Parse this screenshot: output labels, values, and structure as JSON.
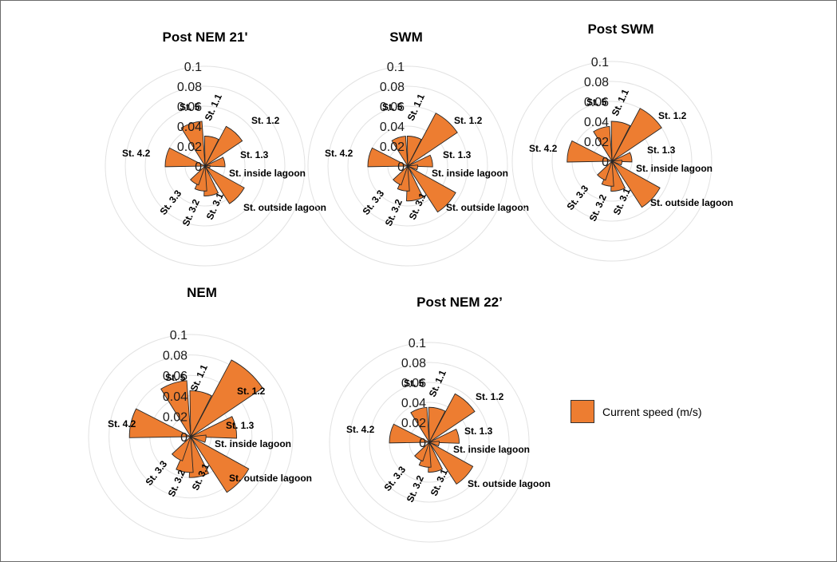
{
  "colors": {
    "bar_fill": "#ED7D31",
    "bar_stroke": "#262626",
    "grid": "#E2E2E2"
  },
  "legend": {
    "label": "Current speed (m/s)",
    "position": "right"
  },
  "chart_data": [
    {
      "type": "polar-bar",
      "title": "Post NEM 21'",
      "r_ticks": [
        "0",
        "0.02",
        "0.04",
        "0.06",
        "0.08",
        "0.1"
      ],
      "rlim": [
        0,
        0.1
      ],
      "grid": true,
      "categories": [
        "St. 1.1",
        "St. 1.2",
        "St. 1.3",
        "St. inside lagoon",
        "St. outside lagoon",
        "St. 3.1",
        "St. 3.2",
        "St. 3.3",
        "St. 4.2",
        "St. 5"
      ],
      "series": [
        {
          "name": "Current speed (m/s)",
          "values": [
            0.03,
            0.045,
            0.02,
            0.005,
            0.045,
            0.03,
            0.025,
            0.02,
            0.04,
            0.045
          ]
        }
      ]
    },
    {
      "type": "polar-bar",
      "title": "SWM",
      "r_ticks": [
        "0",
        "0.02",
        "0.04",
        "0.06",
        "0.08",
        "0.1"
      ],
      "rlim": [
        0,
        0.1
      ],
      "grid": true,
      "categories": [
        "St. 1.1",
        "St. 1.2",
        "St. 1.3",
        "St. inside lagoon",
        "St. outside lagoon",
        "St. 3.1",
        "St. 3.2",
        "St. 3.3",
        "St. 4.2",
        "St. 5"
      ],
      "series": [
        {
          "name": "Current speed (m/s)",
          "values": [
            0.03,
            0.06,
            0.025,
            0.01,
            0.055,
            0.035,
            0.025,
            0.02,
            0.04,
            0.03
          ]
        }
      ]
    },
    {
      "type": "polar-bar",
      "title": "Post SWM",
      "r_ticks": [
        "0",
        "0.02",
        "0.04",
        "0.06",
        "0.08",
        "0.1"
      ],
      "rlim": [
        0,
        0.1
      ],
      "grid": true,
      "categories": [
        "St. 1.1",
        "St. 1.2",
        "St. 1.3",
        "St. inside lagoon",
        "St. outside lagoon",
        "St. 3.1",
        "St. 3.2",
        "St. 3.3",
        "St. 4.2",
        "St. 5"
      ],
      "series": [
        {
          "name": "Current speed (m/s)",
          "values": [
            0.04,
            0.06,
            0.02,
            0.01,
            0.055,
            0.03,
            0.025,
            0.02,
            0.045,
            0.035
          ]
        }
      ]
    },
    {
      "type": "polar-bar",
      "title": "NEM",
      "r_ticks": [
        "0",
        "0.02",
        "0.04",
        "0.06",
        "0.08",
        "0.1"
      ],
      "rlim": [
        0,
        0.1
      ],
      "grid": true,
      "categories": [
        "St. 1.1",
        "St. 1.2",
        "St. 1.3",
        "St. inside lagoon",
        "St. outside lagoon",
        "St. 3.1",
        "St. 3.2",
        "St. 3.3",
        "St. 4.2",
        "St. 5"
      ],
      "series": [
        {
          "name": "Current speed (m/s)",
          "values": [
            0.045,
            0.085,
            0.045,
            0.015,
            0.065,
            0.04,
            0.035,
            0.025,
            0.06,
            0.055
          ]
        }
      ]
    },
    {
      "type": "polar-bar",
      "title": "Post NEM 22’",
      "r_ticks": [
        "0",
        "0.02",
        "0.04",
        "0.06",
        "0.08",
        "0.1"
      ],
      "rlim": [
        0,
        0.1
      ],
      "grid": true,
      "categories": [
        "St. 1.1",
        "St. 1.2",
        "St. 1.3",
        "St. inside lagoon",
        "St. outside lagoon",
        "St. 3.1",
        "St. 3.2",
        "St. 3.3",
        "St. 4.2",
        "St. 5"
      ],
      "series": [
        {
          "name": "Current speed (m/s)",
          "values": [
            0.035,
            0.055,
            0.03,
            0.01,
            0.05,
            0.03,
            0.025,
            0.02,
            0.04,
            0.035
          ]
        }
      ]
    }
  ]
}
